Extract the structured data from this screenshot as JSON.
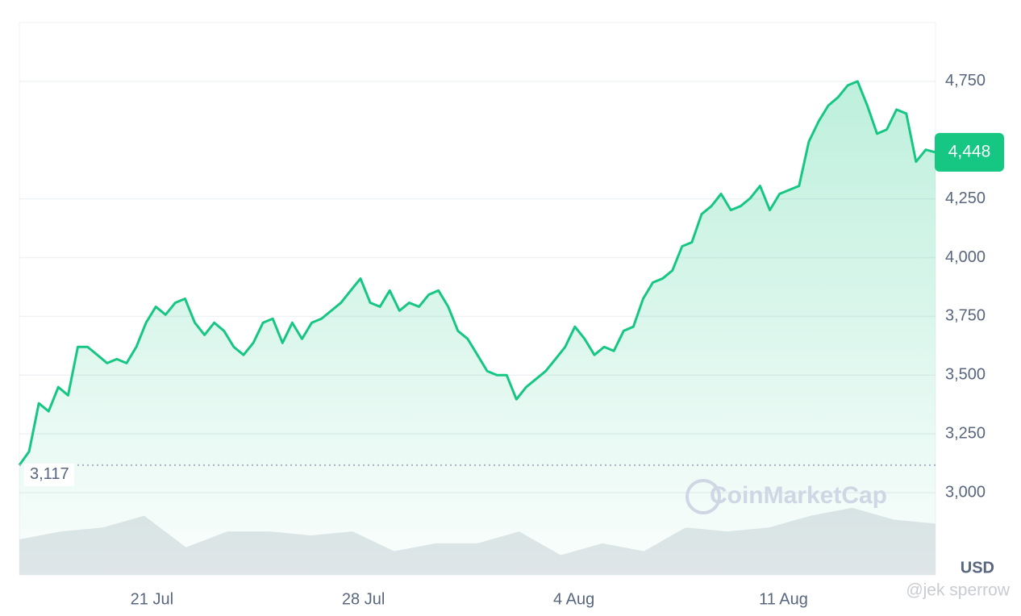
{
  "chart_data": {
    "type": "line",
    "currency": "USD",
    "watermark": "CoinMarketCap",
    "credit": "@jek sperrow",
    "xticks": [
      {
        "value": 13.6,
        "label": "21 Jul"
      },
      {
        "value": 35.3,
        "label": "28 Jul"
      },
      {
        "value": 56.9,
        "label": "4 Aug"
      },
      {
        "value": 78.4,
        "label": "11 Aug"
      }
    ],
    "ylim": [
      2650,
      5000
    ],
    "yticks": [
      {
        "value": 3000,
        "label": "3,000"
      },
      {
        "value": 3250,
        "label": "3,250"
      },
      {
        "value": 3500,
        "label": "3,500"
      },
      {
        "value": 3750,
        "label": "3,750"
      },
      {
        "value": 4000,
        "label": "4,000"
      },
      {
        "value": 4250,
        "label": "4,250"
      },
      {
        "value": 4750,
        "label": "4,750"
      }
    ],
    "grid": true,
    "y2lim": [
      0,
      700
    ],
    "reference_line": {
      "value": 3117,
      "label": "3,117"
    },
    "last_label": {
      "value": 4448,
      "label": "4,448"
    },
    "series": [
      {
        "name": "Price",
        "color": "#16c784",
        "values": [
          3117,
          3175,
          3380,
          3346,
          3449,
          3414,
          3620,
          3620,
          3586,
          3551,
          3568,
          3551,
          3620,
          3723,
          3791,
          3757,
          3808,
          3825,
          3723,
          3671,
          3723,
          3688,
          3620,
          3586,
          3637,
          3723,
          3740,
          3637,
          3723,
          3654,
          3723,
          3740,
          3774,
          3808,
          3860,
          3911,
          3808,
          3791,
          3860,
          3774,
          3808,
          3791,
          3842,
          3860,
          3791,
          3688,
          3654,
          3586,
          3517,
          3500,
          3500,
          3397,
          3449,
          3483,
          3517,
          3568,
          3620,
          3706,
          3654,
          3586,
          3620,
          3603,
          3688,
          3706,
          3825,
          3894,
          3911,
          3945,
          4048,
          4065,
          4185,
          4219,
          4271,
          4202,
          4219,
          4253,
          4305,
          4202,
          4271,
          4288,
          4305,
          4493,
          4579,
          4647,
          4682,
          4733,
          4750,
          4647,
          4527,
          4545,
          4630,
          4613,
          4408,
          4459,
          4448
        ]
      },
      {
        "name": "Volume",
        "color": "#e3e6ea",
        "axis": "y2",
        "values": [
          45,
          55,
          60,
          75,
          35,
          55,
          55,
          50,
          55,
          30,
          40,
          40,
          55,
          25,
          40,
          30,
          60,
          55,
          60,
          75,
          85,
          70,
          65
        ]
      }
    ]
  }
}
